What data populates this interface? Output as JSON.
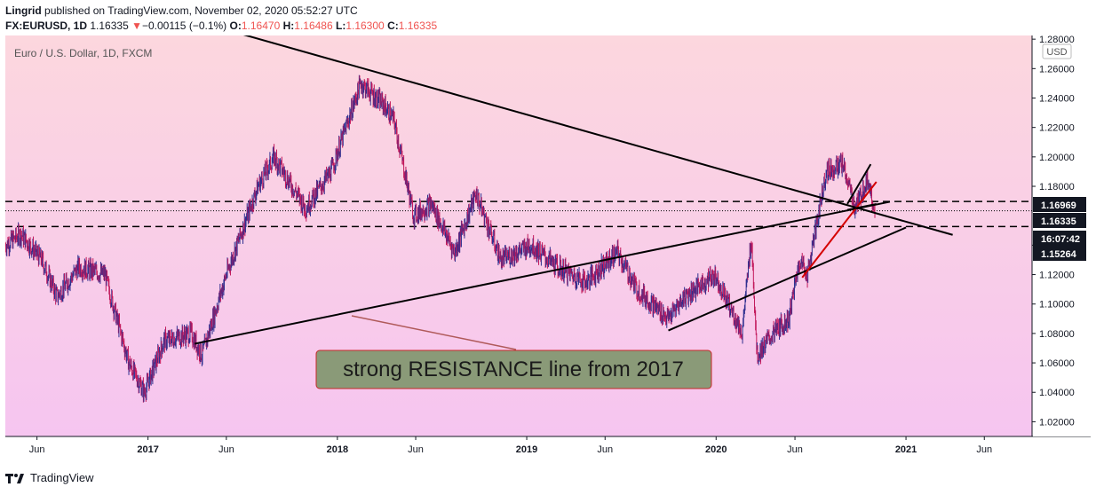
{
  "header": {
    "author": "Lingrid",
    "published_text": "published on TradingView.com, November 02, 2020 05:52:27 UTC",
    "symbol": "FX:EURUSD, 1D",
    "last": "1.16335",
    "change_arrow": "▼",
    "change": "−0.00115 (−0.1%)",
    "o_label": "O:",
    "o_val": "1.16470",
    "h_label": "H:",
    "h_val": "1.16486",
    "l_label": "L:",
    "l_val": "1.16300",
    "c_label": "C:",
    "c_val": "1.16335"
  },
  "footer": {
    "brand": "TradingView",
    "logo_icon": "tradingview-logo-icon"
  },
  "colors": {
    "bg_top": "#fcd7de",
    "bg_bottom": "#f6c5f0",
    "candle": "#2f2f8f",
    "candle_down": "#c2185b",
    "trendline": "#000000",
    "red_trendline": "#d50000",
    "callout_bg": "#8a9a78",
    "callout_border": "#c62828",
    "callout_text": "#1b1b1b"
  },
  "chart_data": {
    "type": "line",
    "title": "Euro / U.S. Dollar, 1D, FXCM",
    "currency_label": "USD",
    "ylim": [
      1.01,
      1.2825
    ],
    "y_ticks": [
      "1.28000",
      "1.26000",
      "1.24000",
      "1.22000",
      "1.20000",
      "1.18000",
      "1.14000",
      "1.12000",
      "1.10000",
      "1.08000",
      "1.06000",
      "1.04000",
      "1.02000"
    ],
    "x_ticks": [
      "Jun",
      "2017",
      "Jun",
      "2018",
      "Jun",
      "2019",
      "Jun",
      "2020",
      "Jun",
      "2021",
      "Jun"
    ],
    "x_tick_dates": [
      "2016-06-01",
      "2017-01-01",
      "2017-06-01",
      "2018-01-01",
      "2018-06-01",
      "2019-01-01",
      "2019-06-01",
      "2020-01-01",
      "2020-06-01",
      "2021-01-01",
      "2021-06-01"
    ],
    "xlim": [
      "2016-04-01",
      "2021-09-01"
    ],
    "price_labels": [
      {
        "text": "1.16969",
        "value": 1.16969,
        "style": "dark"
      },
      {
        "text": "1.16335",
        "value": 1.16335,
        "style": "dark"
      },
      {
        "text": "16:07:42",
        "value": 1.1573,
        "style": "dark"
      },
      {
        "text": "1.15264",
        "value": 1.15264,
        "style": "dark"
      }
    ],
    "horizontal_lines": [
      {
        "value": 1.16969,
        "style": "dashed"
      },
      {
        "value": 1.16335,
        "style": "dotted"
      },
      {
        "value": 1.15264,
        "style": "dashed"
      }
    ],
    "series": [
      {
        "x": [
          "2016-04-01",
          "2016-05-01",
          "2016-06-10",
          "2016-07-10",
          "2016-08-20",
          "2016-10-10",
          "2016-11-25",
          "2016-12-25",
          "2017-02-01",
          "2017-03-25",
          "2017-04-15",
          "2017-06-01",
          "2017-08-01",
          "2017-09-01",
          "2017-11-01",
          "2017-12-20",
          "2018-02-15",
          "2018-04-01",
          "2018-04-20",
          "2018-05-28",
          "2018-07-01",
          "2018-08-15",
          "2018-09-25",
          "2018-11-12",
          "2019-01-10",
          "2019-03-01",
          "2019-04-25",
          "2019-06-25",
          "2019-08-01",
          "2019-10-01",
          "2019-11-01",
          "2019-12-30",
          "2020-02-20",
          "2020-03-09",
          "2020-03-20",
          "2020-04-20",
          "2020-05-20",
          "2020-06-10",
          "2020-06-25",
          "2020-07-31",
          "2020-09-01",
          "2020-09-25",
          "2020-10-20",
          "2020-11-02"
        ],
        "y": [
          1.14,
          1.1475,
          1.13,
          1.105,
          1.125,
          1.12,
          1.06,
          1.04,
          1.075,
          1.08,
          1.065,
          1.12,
          1.18,
          1.2,
          1.165,
          1.19,
          1.25,
          1.235,
          1.225,
          1.16,
          1.168,
          1.135,
          1.175,
          1.13,
          1.14,
          1.125,
          1.115,
          1.135,
          1.11,
          1.09,
          1.105,
          1.12,
          1.08,
          1.145,
          1.065,
          1.08,
          1.09,
          1.13,
          1.12,
          1.19,
          1.195,
          1.165,
          1.185,
          1.16335
        ]
      }
    ],
    "trendlines": [
      {
        "name": "",
        "color": "black",
        "from": [
          "2017-01-15",
          1.3
        ],
        "to": [
          "2021-04-01",
          1.147
        ]
      },
      {
        "name": "",
        "color": "black",
        "from": [
          "2017-04-01",
          1.073
        ],
        "to": [
          "2020-12-01",
          1.1695
        ]
      },
      {
        "name": "",
        "color": "black",
        "from": [
          "2019-10-01",
          1.082
        ],
        "to": [
          "2021-01-01",
          1.152
        ]
      },
      {
        "name": "",
        "color": "red",
        "from": [
          "2020-06-15",
          1.118
        ],
        "to": [
          "2020-11-05",
          1.183
        ]
      },
      {
        "name": "",
        "color": "black",
        "from": [
          "2020-09-10",
          1.168
        ],
        "to": [
          "2020-10-25",
          1.195
        ]
      },
      {
        "name": "",
        "color": "black",
        "from": [
          "2020-09-10",
          1.164
        ],
        "to": [
          "2020-11-05",
          1.168
        ]
      }
    ],
    "annotations": [
      {
        "text": "strong RESISTANCE line from 2017"
      }
    ]
  }
}
